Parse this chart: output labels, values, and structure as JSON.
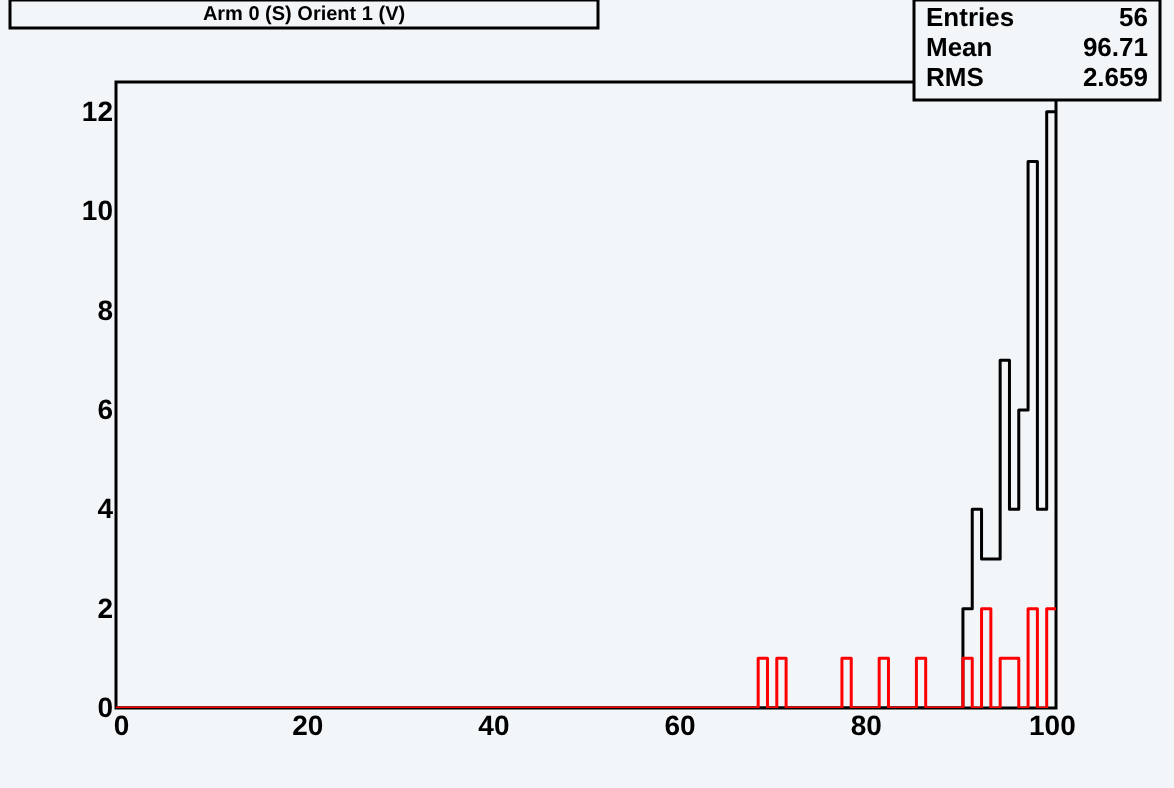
{
  "chart_data": {
    "type": "histogram",
    "title": "Arm 0 (S) Orient 1 (V)",
    "annotations": [
      "Entries",
      "56",
      "Mean",
      "96.71",
      "RMS",
      "2.659"
    ],
    "bins": [
      -0.5,
      0.5,
      1.5,
      2.5,
      3.5,
      4.5,
      5.5,
      6.5,
      7.5,
      8.5,
      9.5,
      10.5,
      11.5,
      12.5,
      13.5,
      14.5,
      15.5,
      16.5,
      17.5,
      18.5,
      19.5,
      20.5,
      21.5,
      22.5,
      23.5,
      24.5,
      25.5,
      26.5,
      27.5,
      28.5,
      29.5,
      30.5,
      31.5,
      32.5,
      33.5,
      34.5,
      35.5,
      36.5,
      37.5,
      38.5,
      39.5,
      40.5,
      41.5,
      42.5,
      43.5,
      44.5,
      45.5,
      46.5,
      47.5,
      48.5,
      49.5,
      50.5,
      51.5,
      52.5,
      53.5,
      54.5,
      55.5,
      56.5,
      57.5,
      58.5,
      59.5,
      60.5,
      61.5,
      62.5,
      63.5,
      64.5,
      65.5,
      66.5,
      67.5,
      68.5,
      69.5,
      70.5,
      71.5,
      72.5,
      73.5,
      74.5,
      75.5,
      76.5,
      77.5,
      78.5,
      79.5,
      80.5,
      81.5,
      82.5,
      83.5,
      84.5,
      85.5,
      86.5,
      87.5,
      88.5,
      89.5,
      90.5,
      91.5,
      92.5,
      93.5,
      94.5,
      95.5,
      96.5,
      97.5,
      98.5,
      99.5,
      100.5
    ],
    "series": [
      {
        "color": "#000000",
        "values": [
          0,
          0,
          0,
          0,
          0,
          0,
          0,
          0,
          0,
          0,
          0,
          0,
          0,
          0,
          0,
          0,
          0,
          0,
          0,
          0,
          0,
          0,
          0,
          0,
          0,
          0,
          0,
          0,
          0,
          0,
          0,
          0,
          0,
          0,
          0,
          0,
          0,
          0,
          0,
          0,
          0,
          0,
          0,
          0,
          0,
          0,
          0,
          0,
          0,
          0,
          0,
          0,
          0,
          0,
          0,
          0,
          0,
          0,
          0,
          0,
          0,
          0,
          0,
          0,
          0,
          0,
          0,
          0,
          0,
          0,
          0,
          0,
          0,
          0,
          0,
          0,
          0,
          0,
          0,
          0,
          0,
          0,
          0,
          0,
          0,
          0,
          0,
          0,
          0,
          0,
          0,
          2,
          4,
          3,
          3,
          7,
          4,
          6,
          11,
          4,
          12
        ]
      },
      {
        "color": "#ff0000",
        "values": [
          0,
          0,
          0,
          0,
          0,
          0,
          0,
          0,
          0,
          0,
          0,
          0,
          0,
          0,
          0,
          0,
          0,
          0,
          0,
          0,
          0,
          0,
          0,
          0,
          0,
          0,
          0,
          0,
          0,
          0,
          0,
          0,
          0,
          0,
          0,
          0,
          0,
          0,
          0,
          0,
          0,
          0,
          0,
          0,
          0,
          0,
          0,
          0,
          0,
          0,
          0,
          0,
          0,
          0,
          0,
          0,
          0,
          0,
          0,
          0,
          0,
          0,
          0,
          0,
          0,
          0,
          0,
          0,
          0,
          1,
          0,
          1,
          0,
          0,
          0,
          0,
          0,
          0,
          1,
          0,
          0,
          0,
          1,
          0,
          0,
          0,
          1,
          0,
          0,
          0,
          0,
          1,
          0,
          2,
          0,
          1,
          1,
          0,
          2,
          0,
          2
        ]
      }
    ],
    "xlim": [
      -0.5,
      100.5
    ],
    "xticks": [
      0,
      20,
      40,
      60,
      80,
      100
    ],
    "ylim": [
      0,
      12.6
    ],
    "yticks": [
      0,
      2,
      4,
      6,
      8,
      10,
      12
    ],
    "grid": false
  }
}
